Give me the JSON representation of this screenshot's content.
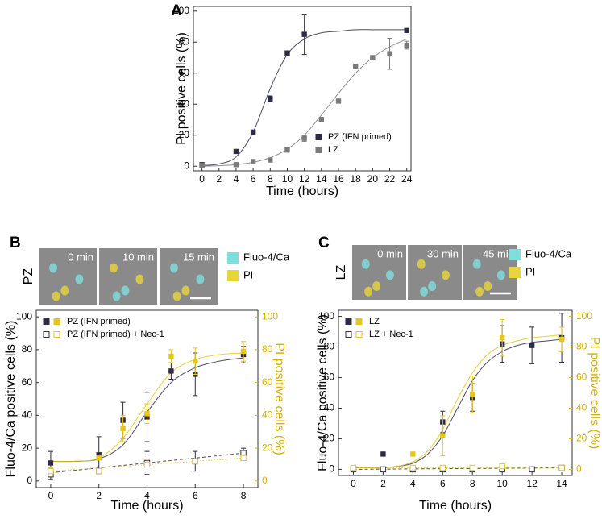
{
  "chart_data": [
    {
      "type": "scatter",
      "panel": "A",
      "xlabel": "Time (hours)",
      "ylabel": "PI positive cells (%)",
      "xlim": [
        -1,
        24.5
      ],
      "ylim": [
        -3,
        103
      ],
      "xticks": [
        0,
        2,
        4,
        6,
        8,
        10,
        12,
        14,
        16,
        18,
        20,
        22,
        24
      ],
      "yticks": [
        0,
        20,
        40,
        60,
        80,
        100
      ],
      "legend": "lower right",
      "series": [
        {
          "name": "PZ (IFN primed)",
          "color": "#2d2b45",
          "marker": "filled",
          "x": [
            0,
            4,
            6,
            8,
            10,
            12,
            24
          ],
          "values": [
            1,
            9.5,
            22,
            43.5,
            73,
            85,
            87.5
          ],
          "errors": [
            null,
            null,
            null,
            1.8,
            null,
            13,
            null
          ],
          "fit": {
            "style": "solid",
            "x": [
              0,
              2,
              4,
              6,
              8,
              10,
              12,
              14,
              16,
              18,
              20,
              22,
              24
            ],
            "values": [
              0.5,
              1.5,
              6,
              22,
              50,
              72,
              82,
              86,
              87,
              88,
              88,
              88,
              88
            ]
          }
        },
        {
          "name": "LZ",
          "color": "#7a7a7a",
          "marker": "filled",
          "x": [
            0,
            4,
            6,
            8,
            10,
            12,
            14,
            16,
            18,
            20,
            22,
            24
          ],
          "values": [
            0.5,
            1,
            3,
            4,
            10.5,
            18,
            30,
            42,
            64.5,
            70,
            72.5,
            78
          ],
          "errors": [
            null,
            null,
            null,
            null,
            1.5,
            2,
            1.5,
            null,
            null,
            null,
            10,
            2.5
          ],
          "fit": {
            "style": "solid",
            "x": [
              0,
              2,
              4,
              6,
              8,
              10,
              12,
              14,
              16,
              18,
              20,
              22,
              24
            ],
            "values": [
              0,
              0.3,
              1,
              2.5,
              5.5,
              11,
              20,
              33,
              47,
              60,
              70,
              77,
              82
            ]
          }
        }
      ]
    },
    {
      "type": "scatter",
      "panel": "B",
      "xlabel": "Time (hours)",
      "ylabel": "Fluo-4/Ca positive cells (%)",
      "y2label": "PI positive cells (%)",
      "y2color": "#d4b106",
      "xlim": [
        -0.6,
        8.6
      ],
      "ylim": [
        -4,
        104
      ],
      "y2lim": [
        -4,
        104
      ],
      "xticks": [
        0,
        2,
        4,
        6,
        8
      ],
      "yticks": [
        0,
        20,
        40,
        60,
        80,
        100
      ],
      "y2ticks": [
        0,
        20,
        40,
        60,
        80,
        100
      ],
      "legend": "upper left",
      "images": {
        "row_label": "PZ",
        "frames": [
          "0 min",
          "10 min",
          "15 min"
        ],
        "legend": [
          {
            "name": "Fluo-4/Ca",
            "color": "#7fdede"
          },
          {
            "name": "PI",
            "color": "#e8d53a"
          }
        ]
      },
      "series": [
        {
          "name": "PZ (IFN primed)",
          "color": "#2d2b45",
          "marker": "filled",
          "x": [
            0,
            2,
            3,
            4,
            5,
            6,
            8
          ],
          "values": [
            11,
            16,
            37,
            39,
            67,
            65,
            77
          ],
          "errors": [
            7,
            11,
            11,
            15,
            5,
            13,
            5
          ],
          "fit": {
            "style": "solid",
            "x": [
              0,
              1,
              2,
              3,
              4,
              5,
              6,
              7,
              8
            ],
            "values": [
              12,
              12,
              13.5,
              22,
              42,
              60,
              69,
              73,
              75
            ]
          }
        },
        {
          "color": "#e6c619",
          "marker": "filled",
          "axis": "y2",
          "x": [
            0,
            2,
            3,
            4,
            5,
            6,
            8
          ],
          "values": [
            7,
            14,
            32,
            41,
            76,
            73,
            79
          ],
          "errors": [
            null,
            null,
            8,
            6,
            4,
            8,
            6
          ],
          "fit": {
            "style": "solid",
            "x": [
              0,
              1,
              2,
              3,
              4,
              5,
              6,
              7,
              8
            ],
            "values": [
              12,
              12,
              14,
              26,
              47,
              66,
              74,
              77,
              78
            ]
          }
        },
        {
          "name": "PZ (IFN primed) + Nec-1",
          "color": "#2d2b45",
          "marker": "open",
          "x": [
            0,
            2,
            4,
            6,
            8
          ],
          "values": [
            4,
            6,
            11,
            12,
            17
          ],
          "errors": [
            3,
            null,
            7,
            6,
            3
          ],
          "fit": {
            "style": "dashed",
            "x": [
              0,
              8
            ],
            "values": [
              5,
              17
            ]
          }
        },
        {
          "color": "#e6c619",
          "marker": "open",
          "axis": "y2",
          "x": [
            0,
            2,
            4,
            6,
            8
          ],
          "values": [
            6,
            6,
            10,
            12,
            14
          ],
          "errors": [
            null,
            null,
            null,
            null,
            null
          ],
          "fit": {
            "style": "dotted",
            "x": [
              0,
              8
            ],
            "values": [
              6,
              14
            ]
          }
        }
      ]
    },
    {
      "type": "scatter",
      "panel": "C",
      "xlabel": "Time (hours)",
      "ylabel": "Fluo-4/Ca positive cells (%)",
      "y2label": "PI positive cells (%)",
      "y2color": "#d4b106",
      "xlim": [
        -1,
        14.7
      ],
      "ylim": [
        -4,
        104
      ],
      "y2lim": [
        -4,
        104
      ],
      "xticks": [
        0,
        2,
        4,
        6,
        8,
        10,
        12,
        14
      ],
      "yticks": [
        0,
        20,
        40,
        60,
        80,
        100
      ],
      "y2ticks": [
        0,
        20,
        40,
        60,
        80,
        100
      ],
      "legend": "upper left",
      "images": {
        "row_label": "LZ",
        "frames": [
          "0 min",
          "30 min",
          "45 min"
        ],
        "legend": [
          {
            "name": "Fluo-4/Ca",
            "color": "#7fdede"
          },
          {
            "name": "PI",
            "color": "#e8d53a"
          }
        ]
      },
      "series": [
        {
          "name": "LZ",
          "color": "#2d2b45",
          "marker": "filled",
          "x": [
            0,
            2,
            6,
            8,
            10,
            12,
            14
          ],
          "values": [
            0,
            10,
            31,
            47,
            82,
            81,
            86
          ],
          "errors": [
            null,
            null,
            7,
            9,
            12,
            12,
            16
          ],
          "fit": {
            "style": "solid",
            "x": [
              0,
              1,
              2,
              3,
              4,
              5,
              6,
              7,
              8,
              9,
              10,
              11,
              12,
              13,
              14
            ],
            "values": [
              1,
              1,
              1,
              2,
              4,
              10,
              22,
              40,
              58,
              70,
              77,
              81,
              83,
              84,
              85
            ]
          }
        },
        {
          "color": "#e6c619",
          "marker": "filled",
          "axis": "y2",
          "x": [
            0,
            4,
            6,
            8,
            10,
            14
          ],
          "values": [
            0,
            10,
            22,
            49,
            86,
            85
          ],
          "errors": [
            null,
            null,
            13,
            12,
            12,
            8
          ],
          "fit": {
            "style": "solid",
            "x": [
              0,
              1,
              2,
              3,
              4,
              5,
              6,
              7,
              8,
              9,
              10,
              11,
              12,
              13,
              14
            ],
            "values": [
              1,
              1,
              1,
              2,
              5,
              12,
              26,
              46,
              63,
              75,
              81,
              84,
              86,
              87,
              88
            ]
          }
        },
        {
          "name": "LZ + Nec-1",
          "color": "#2d2b45",
          "marker": "open",
          "x": [
            0,
            2,
            4,
            6,
            8,
            10,
            12,
            14
          ],
          "values": [
            0,
            0,
            0,
            0,
            0,
            0,
            0,
            1
          ],
          "errors": [
            null,
            null,
            null,
            null,
            null,
            null,
            null,
            null
          ],
          "fit": {
            "style": "dashed",
            "x": [
              0,
              14
            ],
            "values": [
              0,
              1
            ]
          }
        },
        {
          "color": "#e6c619",
          "marker": "open",
          "axis": "y2",
          "x": [
            0,
            4,
            6,
            8,
            10,
            14
          ],
          "values": [
            1,
            1,
            1,
            1,
            2,
            1
          ],
          "errors": [
            null,
            null,
            null,
            null,
            null,
            null
          ],
          "fit": {
            "style": "dotted",
            "x": [
              0,
              14
            ],
            "values": [
              1,
              1
            ]
          }
        }
      ]
    }
  ]
}
